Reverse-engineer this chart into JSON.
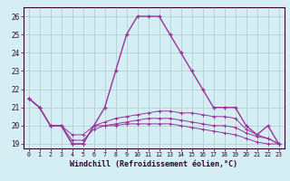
{
  "xlabel": "Windchill (Refroidissement éolien,°C)",
  "hours": [
    0,
    1,
    2,
    3,
    4,
    5,
    6,
    7,
    8,
    9,
    10,
    11,
    12,
    13,
    14,
    15,
    16,
    17,
    18,
    19,
    20,
    21,
    22,
    23
  ],
  "temp": [
    21.5,
    21.0,
    20.0,
    20.0,
    19.0,
    19.0,
    20.0,
    21.0,
    23.0,
    25.0,
    26.0,
    26.0,
    26.0,
    25.0,
    24.0,
    23.0,
    22.0,
    21.0,
    21.0,
    21.0,
    20.0,
    19.5,
    20.0,
    19.0
  ],
  "wc1": [
    21.5,
    21.0,
    20.0,
    20.0,
    19.0,
    19.0,
    20.0,
    20.2,
    20.4,
    20.5,
    20.6,
    20.7,
    20.8,
    20.8,
    20.7,
    20.7,
    20.6,
    20.5,
    20.5,
    20.4,
    19.8,
    19.5,
    19.3,
    19.0
  ],
  "wc2": [
    21.5,
    21.0,
    20.0,
    20.0,
    19.2,
    19.2,
    19.8,
    20.0,
    20.1,
    20.2,
    20.3,
    20.4,
    20.4,
    20.4,
    20.3,
    20.2,
    20.1,
    20.0,
    20.0,
    19.9,
    19.6,
    19.4,
    19.3,
    19.0
  ],
  "wc3": [
    21.5,
    21.0,
    20.0,
    20.0,
    19.5,
    19.5,
    20.0,
    20.0,
    20.0,
    20.1,
    20.1,
    20.1,
    20.1,
    20.1,
    20.0,
    19.9,
    19.8,
    19.7,
    19.6,
    19.5,
    19.3,
    19.1,
    19.0,
    19.0
  ],
  "line_color": "#993399",
  "bg_color": "#d4eef4",
  "grid_color": "#aacccc",
  "ylim": [
    18.75,
    26.5
  ],
  "xlim": [
    -0.5,
    23.5
  ]
}
